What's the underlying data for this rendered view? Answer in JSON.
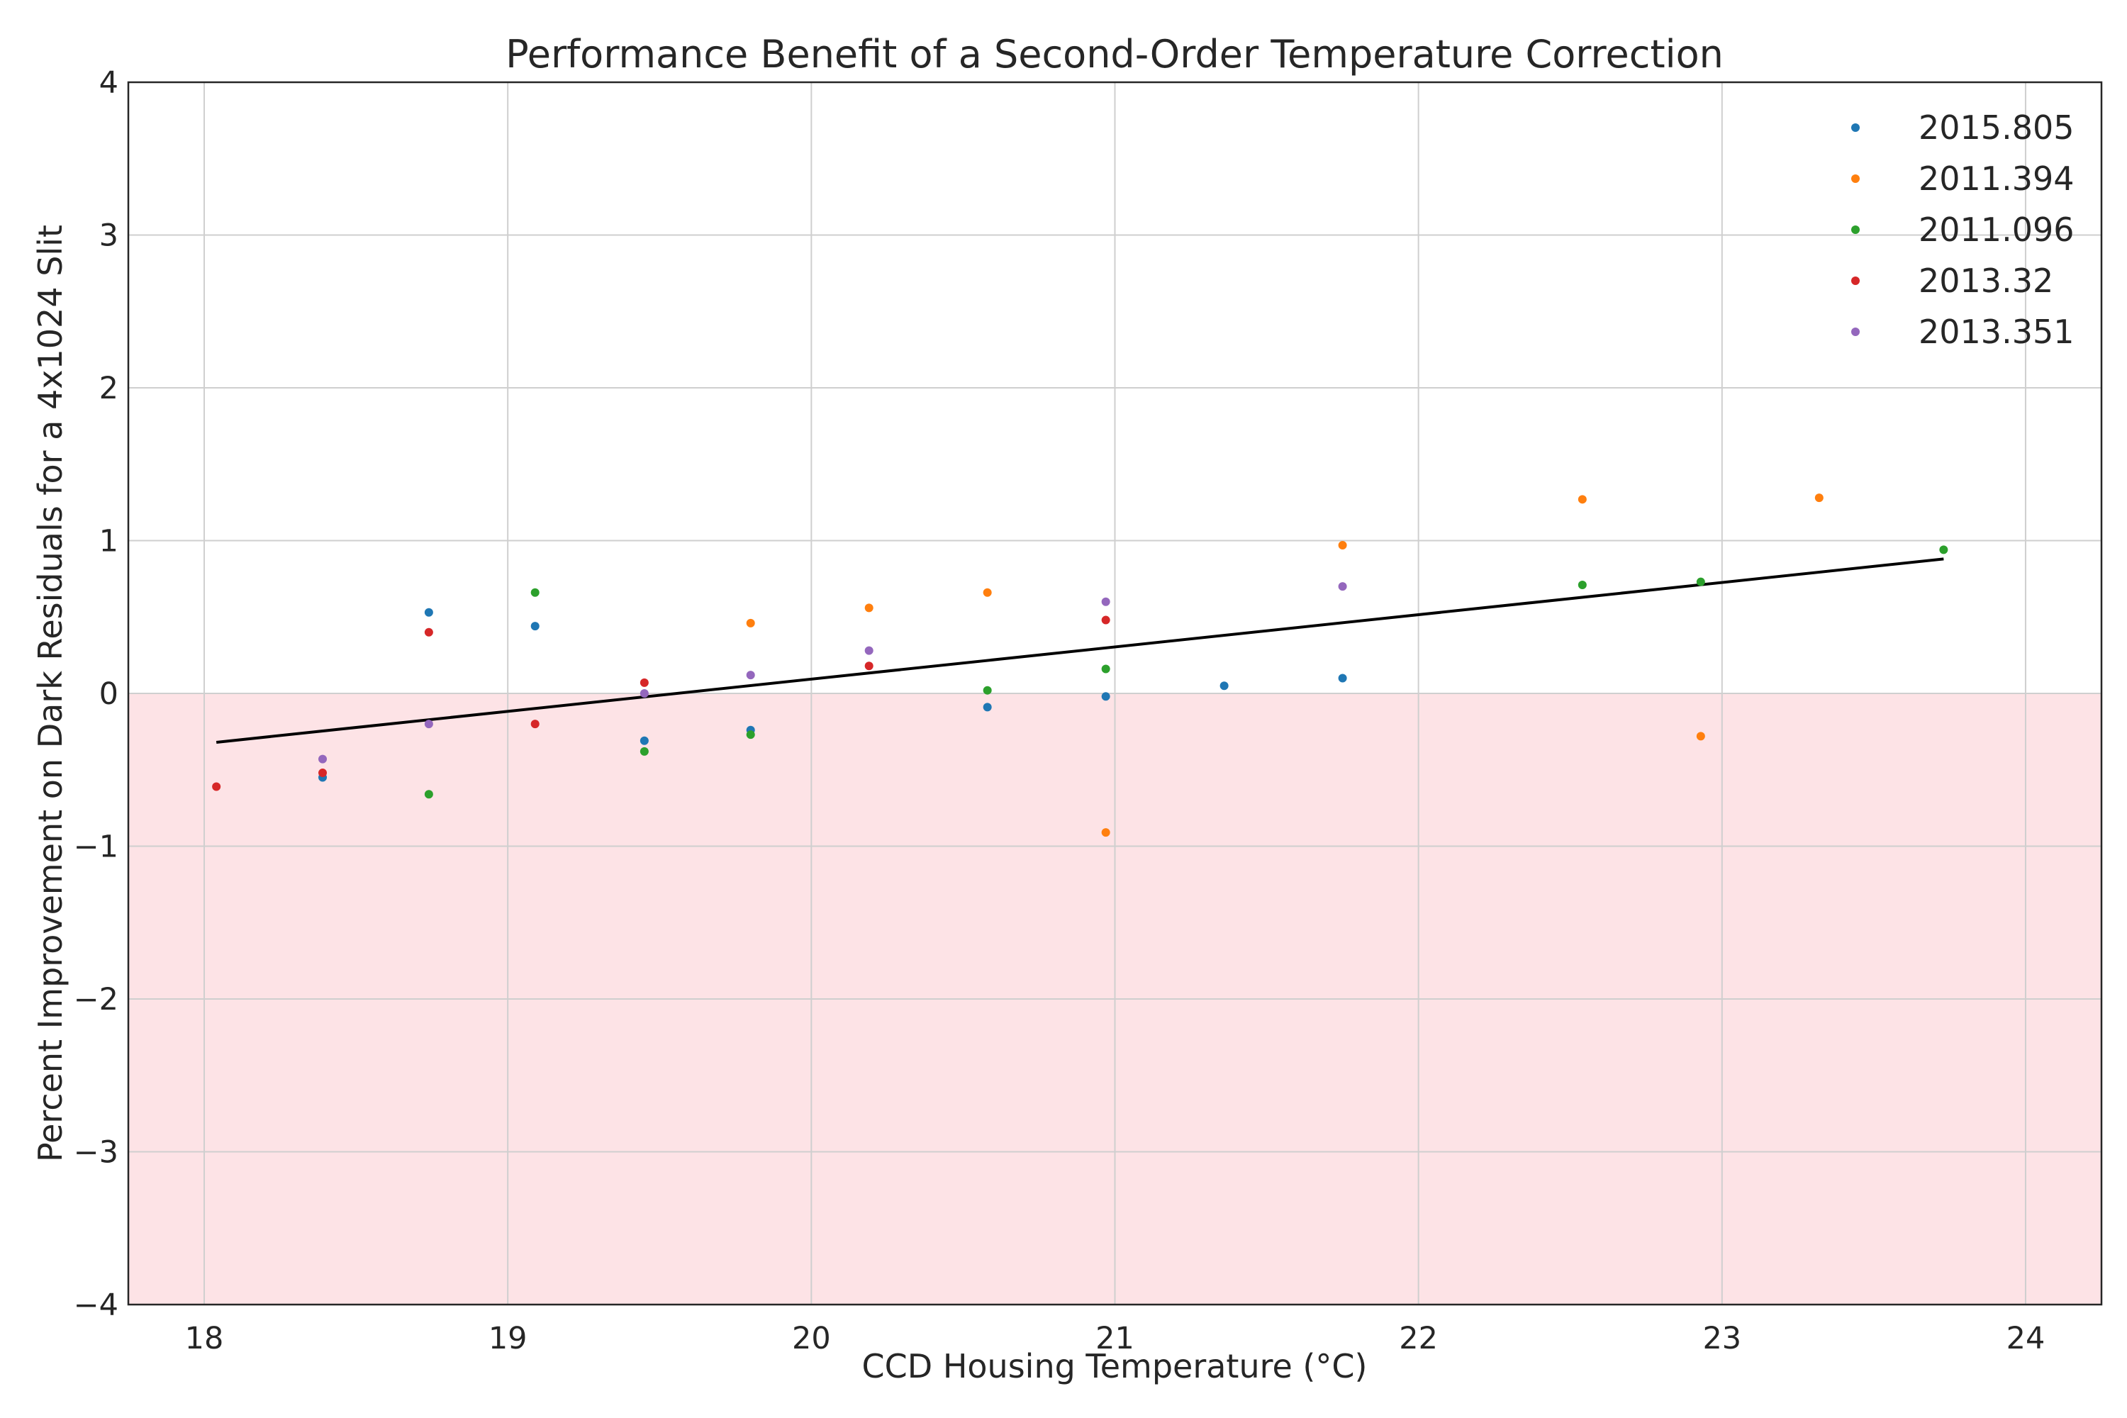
{
  "chart_data": {
    "type": "scatter",
    "title": "Performance Benefit of a Second-Order Temperature Correction",
    "xlabel": "CCD Housing Temperature (°C)",
    "ylabel": "Percent Improvement on Dark Residuals for a 4x1024 Slit",
    "xlim": [
      17.75,
      24.25
    ],
    "ylim": [
      -4,
      4
    ],
    "x_ticks": [
      18,
      19,
      20,
      21,
      22,
      23,
      24
    ],
    "y_ticks": [
      4,
      3,
      2,
      1,
      0,
      -1,
      -2,
      -3,
      -4
    ],
    "x_tick_labels": [
      "18",
      "19",
      "20",
      "21",
      "22",
      "23",
      "24"
    ],
    "y_tick_labels": [
      "4",
      "3",
      "2",
      "1",
      "0",
      "−1",
      "−2",
      "−3",
      "−4"
    ],
    "grid": true,
    "legend_position": "top-right",
    "negative_region_color": "#fde3e6",
    "trend_line": {
      "color": "#000000",
      "x": [
        18.04,
        23.73
      ],
      "y": [
        -0.32,
        0.88
      ]
    },
    "series": [
      {
        "name": "2015.805",
        "color": "#1f77b4",
        "points": [
          [
            18.39,
            -0.55
          ],
          [
            18.74,
            0.53
          ],
          [
            19.09,
            0.44
          ],
          [
            19.45,
            -0.31
          ],
          [
            19.8,
            -0.24
          ],
          [
            20.58,
            -0.09
          ],
          [
            20.97,
            -0.02
          ],
          [
            21.36,
            0.05
          ],
          [
            21.75,
            0.1
          ]
        ]
      },
      {
        "name": "2011.394",
        "color": "#ff7f0e",
        "points": [
          [
            19.8,
            0.46
          ],
          [
            20.19,
            0.56
          ],
          [
            20.58,
            0.66
          ],
          [
            20.97,
            -0.91
          ],
          [
            21.75,
            0.97
          ],
          [
            22.54,
            1.27
          ],
          [
            22.93,
            -0.28
          ],
          [
            23.32,
            1.28
          ]
        ]
      },
      {
        "name": "2011.096",
        "color": "#2ca02c",
        "points": [
          [
            18.74,
            -0.66
          ],
          [
            19.09,
            0.66
          ],
          [
            19.45,
            -0.38
          ],
          [
            19.8,
            -0.27
          ],
          [
            20.58,
            0.02
          ],
          [
            20.97,
            0.16
          ],
          [
            22.54,
            0.71
          ],
          [
            22.93,
            0.73
          ],
          [
            23.73,
            0.94
          ]
        ]
      },
      {
        "name": "2013.32",
        "color": "#d62728",
        "points": [
          [
            18.04,
            -0.61
          ],
          [
            18.39,
            -0.52
          ],
          [
            18.74,
            0.4
          ],
          [
            19.09,
            -0.2
          ],
          [
            19.45,
            0.07
          ],
          [
            20.19,
            0.18
          ],
          [
            20.97,
            0.48
          ]
        ]
      },
      {
        "name": "2013.351",
        "color": "#9467bd",
        "points": [
          [
            18.39,
            -0.43
          ],
          [
            18.74,
            -0.2
          ],
          [
            19.45,
            0.0
          ],
          [
            19.8,
            0.12
          ],
          [
            20.19,
            0.28
          ],
          [
            20.97,
            0.6
          ],
          [
            21.75,
            0.7
          ]
        ]
      }
    ]
  }
}
